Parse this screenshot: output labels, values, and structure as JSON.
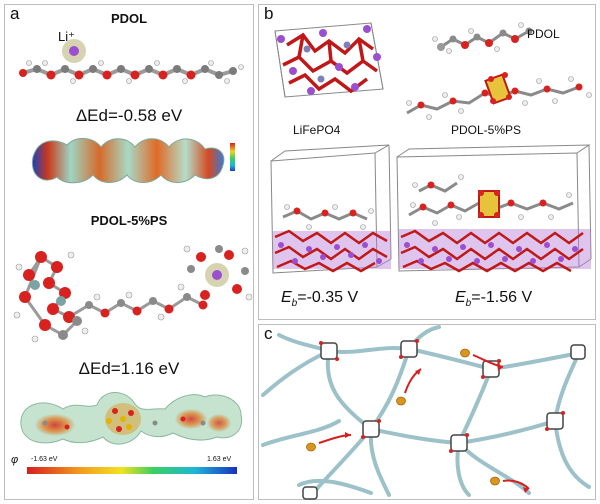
{
  "panel_a": {
    "label": "a",
    "title_pdol": "PDOL",
    "li_label": "Li⁺",
    "energy_pdol": "ΔEd=-0.58 eV",
    "title_pdol_ps": "PDOL-5%PS",
    "energy_pdol_ps": "ΔEd=1.16 eV",
    "esp_scale": {
      "symbol": "φ",
      "min_label": "-1.63 eV",
      "max_label": "1.63 eV"
    }
  },
  "panel_b": {
    "label": "b",
    "label_lifepo4": "LiFePO4",
    "label_pdol": "PDOL",
    "label_pdol_ps": "PDOL-5%PS",
    "eb_left": "-0.35 V",
    "eb_right": "-1.56 V",
    "eb_symbol": "E",
    "eb_sub": "b"
  },
  "panel_c": {
    "label": "c"
  },
  "colors": {
    "oxygen": "#d8221f",
    "carbon": "#8a8a8a",
    "hydrogen": "#f2f2f2",
    "lithium": "#9b4fd0",
    "phosphorus": "#e2b400",
    "network_line": "#8fb6bf",
    "arrow": "#d62020"
  }
}
